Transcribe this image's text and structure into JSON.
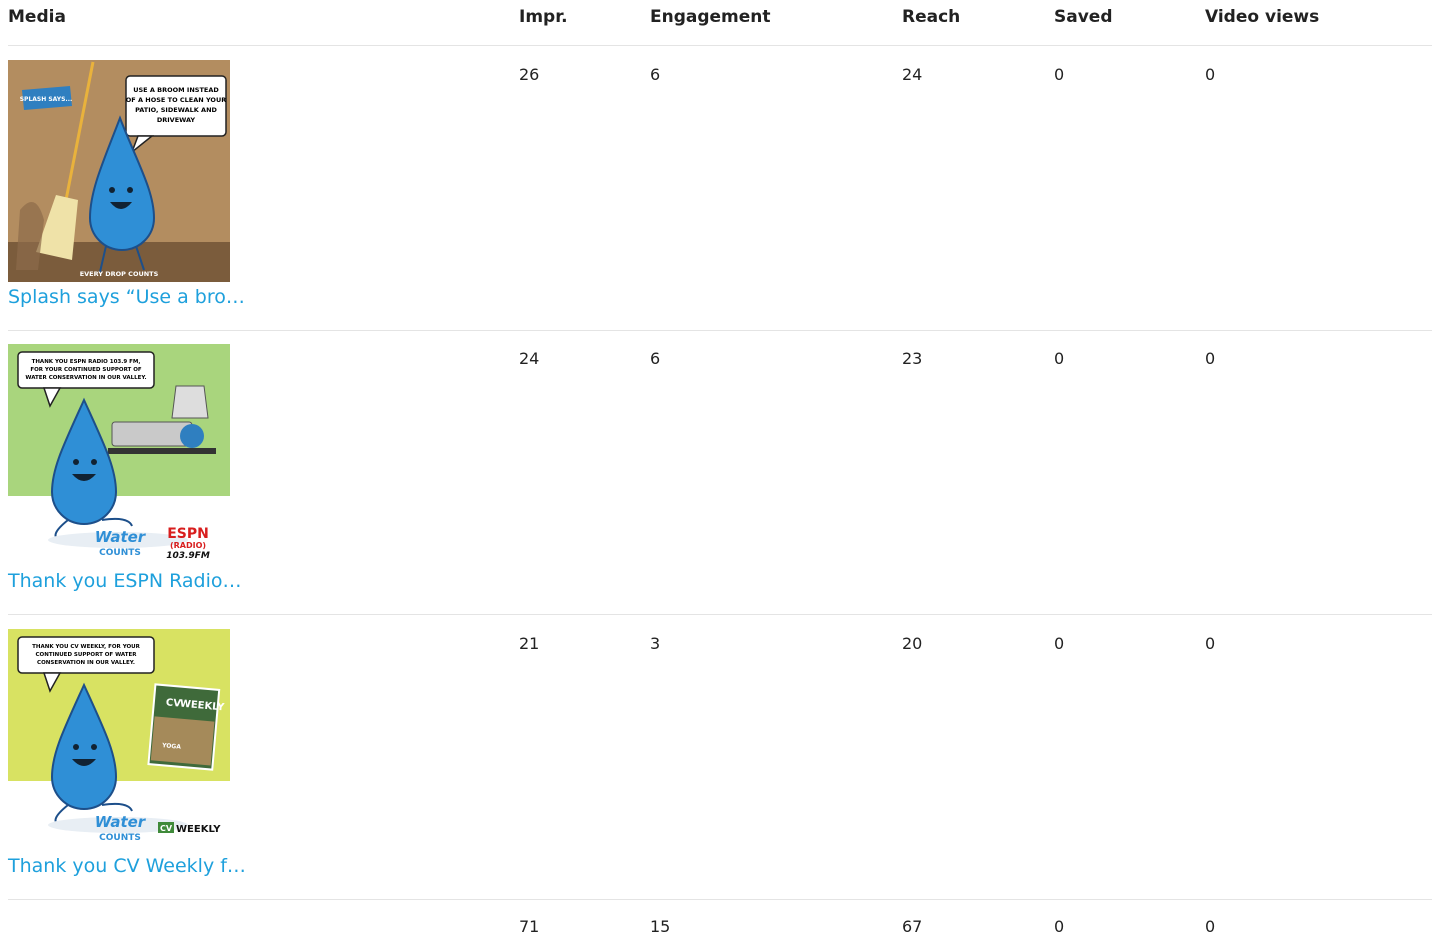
{
  "table": {
    "header": [
      "Media",
      "Impr.",
      "Engagement",
      "Reach",
      "Saved",
      "Video views"
    ],
    "rows": [
      {
        "media": {
          "link": "Splash says “Use a bro…",
          "image_text": [
            "SPLASH SAYS...",
            "USE A BROOM INSTEAD",
            "OF A HOSE TO CLEAN YOUR",
            "PATIO, SIDEWALK AND",
            "DRIVEWAY",
            "EVERY DROP COUNTS"
          ]
        },
        "cells": [
          26,
          6,
          24,
          0,
          0
        ]
      },
      {
        "media": {
          "link": "Thank you ESPN Radio…",
          "image_text": [
            "THANK YOU ESPN RADIO 103.9 FM,",
            "FOR YOUR CONTINUED SUPPORT OF",
            "WATER CONSERVATION IN OUR VALLEY.",
            "Water",
            "COUNTS",
            "ESPN",
            "(RADIO)",
            "103.9FM"
          ]
        },
        "cells": [
          24,
          6,
          23,
          0,
          0
        ]
      },
      {
        "media": {
          "link": "Thank you CV Weekly f…",
          "image_text": [
            "THANK YOU CV WEEKLY, FOR YOUR",
            "CONTINUED SUPPORT OF WATER",
            "CONSERVATION IN OUR VALLEY.",
            "Water",
            "COUNTS",
            "CV",
            "WEEKLY",
            "YOGA"
          ]
        },
        "cells": [
          21,
          3,
          20,
          0,
          0
        ]
      }
    ],
    "total": [
      71,
      15,
      67,
      0,
      0
    ]
  }
}
